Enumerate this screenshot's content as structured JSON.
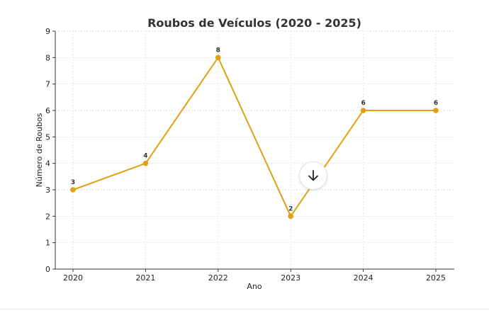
{
  "chart_data": {
    "type": "line",
    "title": "Roubos de Veículos (2020 - 2025)",
    "xlabel": "Ano",
    "ylabel": "Número de Roubos",
    "categories": [
      "2020",
      "2021",
      "2022",
      "2023",
      "2024",
      "2025"
    ],
    "values": [
      3,
      4,
      8,
      2,
      6,
      6
    ],
    "data_labels": [
      "3",
      "4",
      "8",
      "2",
      "6",
      "6"
    ],
    "yticks": [
      "0",
      "1",
      "2",
      "3",
      "4",
      "5",
      "6",
      "7",
      "8",
      "9"
    ],
    "ylim": [
      0,
      9
    ],
    "grid": true,
    "color": "#E0A010"
  },
  "scroll_button": {
    "icon": "arrow-down-icon"
  }
}
